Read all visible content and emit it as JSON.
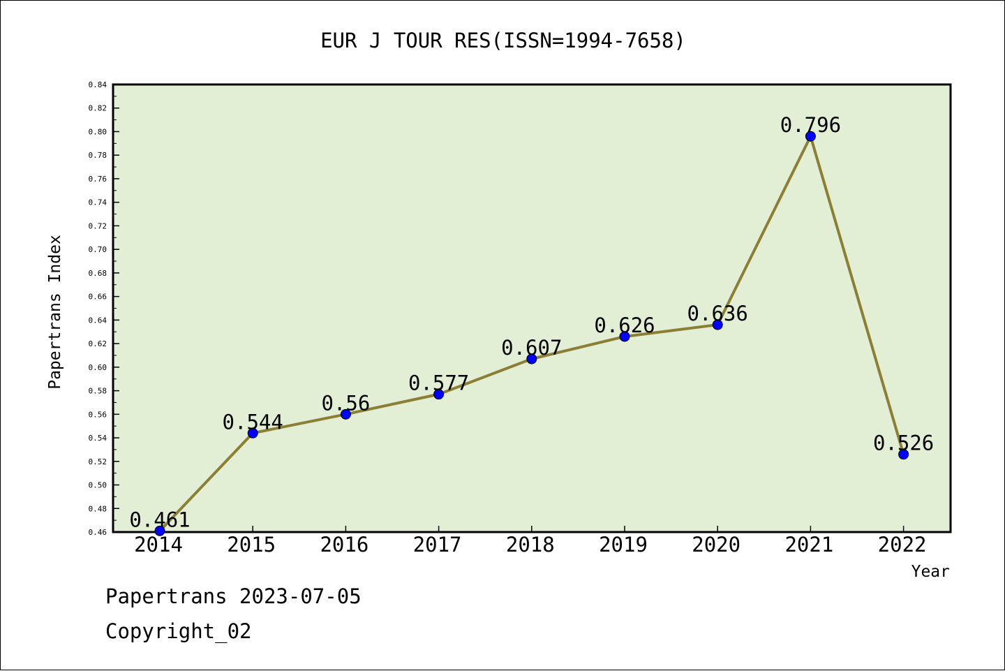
{
  "chart_data": {
    "type": "line",
    "title": "EUR J TOUR RES(ISSN=1994-7658)",
    "xlabel": "Year",
    "ylabel": "Papertrans Index",
    "categories": [
      "2014",
      "2015",
      "2016",
      "2017",
      "2018",
      "2019",
      "2020",
      "2021",
      "2022"
    ],
    "series": [
      {
        "values": [
          0.461,
          0.544,
          0.56,
          0.577,
          0.607,
          0.626,
          0.636,
          0.796,
          0.526
        ],
        "labels": [
          "0.461",
          "0.544",
          "0.56",
          "0.577",
          "0.607",
          "0.626",
          "0.636",
          "0.796",
          "0.526"
        ]
      }
    ],
    "ylim": [
      0.46,
      0.84
    ],
    "yticks": [
      "0.46",
      "0.48",
      "0.50",
      "0.52",
      "0.54",
      "0.56",
      "0.58",
      "0.60",
      "0.62",
      "0.64",
      "0.66",
      "0.68",
      "0.70",
      "0.72",
      "0.74",
      "0.76",
      "0.78",
      "0.80",
      "0.82",
      "0.84"
    ],
    "grid": false,
    "colors": {
      "plot_background": "#e2efd4",
      "line": "#8b7f35",
      "marker": "#0000ff"
    }
  },
  "footer": {
    "line1": "Papertrans 2023-07-05",
    "line2": "Copyright_02"
  }
}
